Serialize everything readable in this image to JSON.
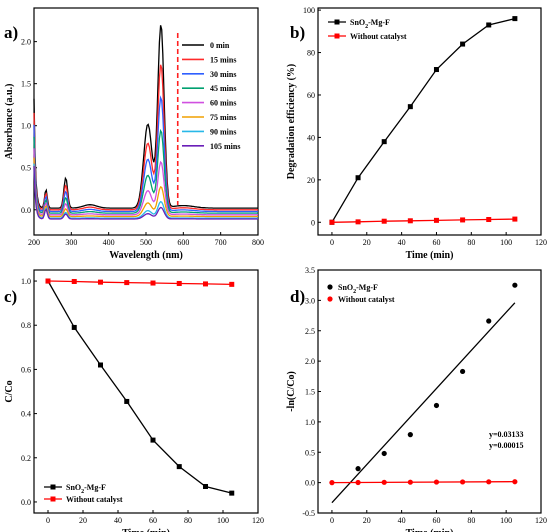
{
  "chart_data": [
    {
      "type": "line",
      "panel_label": "a)",
      "xlabel": "Wavelength (nm)",
      "ylabel": "Absorbance (a.u.)",
      "xlim": [
        200,
        800
      ],
      "ylim": [
        -0.3,
        2.4
      ],
      "xticks": [
        200,
        300,
        400,
        500,
        600,
        700,
        800
      ],
      "yticks": [
        0.0,
        0.5,
        1.0,
        1.5,
        2.0
      ],
      "dashed_marker_x": 585,
      "dashed_marker_color": "#ff2020",
      "legend_position": "top-right",
      "series": [
        {
          "name": "0 min",
          "color": "#000000",
          "peak": 2.22,
          "base": 0.02
        },
        {
          "name": "15 mins",
          "color": "#ff2a2a",
          "peak": 1.76,
          "base": 0.0
        },
        {
          "name": "30 mins",
          "color": "#2f5fff",
          "peak": 1.38,
          "base": -0.02
        },
        {
          "name": "45 mins",
          "color": "#00a070",
          "peak": 1.0,
          "base": -0.04
        },
        {
          "name": "60 mins",
          "color": "#d050e0",
          "peak": 0.64,
          "base": -0.06
        },
        {
          "name": "75 mins",
          "color": "#f0a000",
          "peak": 0.36,
          "base": -0.08
        },
        {
          "name": "90 mins",
          "color": "#28b8e8",
          "peak": 0.2,
          "base": -0.1
        },
        {
          "name": "105 mins",
          "color": "#6a1fb8",
          "peak": 0.14,
          "base": -0.11
        }
      ]
    },
    {
      "type": "line",
      "panel_label": "b)",
      "xlabel": "Time (min)",
      "ylabel": "Degradation efficiency (%)",
      "xlim": [
        -8,
        120
      ],
      "ylim": [
        -6,
        101
      ],
      "xticks": [
        0,
        20,
        40,
        60,
        80,
        100,
        120
      ],
      "yticks": [
        0,
        20,
        40,
        60,
        80,
        100
      ],
      "legend_position": "top-left",
      "series": [
        {
          "name": "SnO2-Mg-F",
          "name_main": "SnO",
          "name_sub": "2",
          "name_rest": "-Mg-F",
          "color": "#000000",
          "marker": "square",
          "x": [
            0,
            15,
            30,
            45,
            60,
            75,
            90,
            105
          ],
          "y": [
            0,
            21,
            38,
            54.5,
            72,
            84,
            93,
            96
          ]
        },
        {
          "name": "Without catalyst",
          "color": "#ff0000",
          "marker": "square",
          "x": [
            0,
            15,
            30,
            45,
            60,
            75,
            90,
            105
          ],
          "y": [
            0,
            0.2,
            0.5,
            0.7,
            0.9,
            1.1,
            1.3,
            1.5
          ]
        }
      ]
    },
    {
      "type": "line",
      "panel_label": "c)",
      "xlabel": "Time (min)",
      "ylabel": "C/Co",
      "xlim": [
        -8,
        120
      ],
      "ylim": [
        -0.05,
        1.05
      ],
      "xticks": [
        0,
        20,
        40,
        60,
        80,
        100,
        120
      ],
      "yticks": [
        0.0,
        0.2,
        0.4,
        0.6,
        0.8,
        1.0
      ],
      "legend_position": "bottom-left",
      "series": [
        {
          "name": "SnO2-Mg-F",
          "name_main": "SnO",
          "name_sub": "2",
          "name_rest": "-Mg-F",
          "color": "#000000",
          "marker": "square",
          "x": [
            0,
            15,
            30,
            45,
            60,
            75,
            90,
            105
          ],
          "y": [
            1.0,
            0.79,
            0.62,
            0.455,
            0.28,
            0.16,
            0.07,
            0.04
          ]
        },
        {
          "name": "Without catalyst",
          "color": "#ff0000",
          "marker": "square",
          "x": [
            0,
            15,
            30,
            45,
            60,
            75,
            90,
            105
          ],
          "y": [
            1.0,
            0.998,
            0.995,
            0.993,
            0.991,
            0.989,
            0.987,
            0.985
          ]
        }
      ]
    },
    {
      "type": "scatter",
      "panel_label": "d)",
      "xlabel": "Time (min)",
      "ylabel": "-ln(C/Co)",
      "xlim": [
        -8,
        120
      ],
      "ylim": [
        -0.5,
        3.5
      ],
      "xticks": [
        0,
        20,
        40,
        60,
        80,
        100,
        120
      ],
      "yticks": [
        -0.5,
        0.0,
        0.5,
        1.0,
        1.5,
        2.0,
        2.5,
        3.0,
        3.5
      ],
      "legend_position": "top-left",
      "series": [
        {
          "name": "SnO2-Mg-F",
          "name_main": "SnO",
          "name_sub": "2",
          "name_rest": "-Mg-F",
          "color": "#000000",
          "marker": "circle",
          "x": [
            15,
            30,
            45,
            60,
            75,
            90,
            105
          ],
          "y": [
            0.23,
            0.48,
            0.79,
            1.27,
            1.83,
            2.66,
            3.25
          ],
          "fit": {
            "x": [
              0,
              105
            ],
            "y": [
              -0.33,
              2.96
            ]
          }
        },
        {
          "name": "Without catalyst",
          "color": "#ff0000",
          "marker": "circle",
          "x": [
            0,
            15,
            30,
            45,
            60,
            75,
            90,
            105
          ],
          "y": [
            0,
            0.002,
            0.005,
            0.007,
            0.009,
            0.011,
            0.013,
            0.015
          ],
          "fit": {
            "x": [
              0,
              105
            ],
            "y": [
              0,
              0.016
            ]
          }
        }
      ],
      "annotations": [
        {
          "text": "y=0.03133",
          "color": "#000000"
        },
        {
          "text": "y=0.00015",
          "color": "#ff0000"
        }
      ]
    }
  ]
}
